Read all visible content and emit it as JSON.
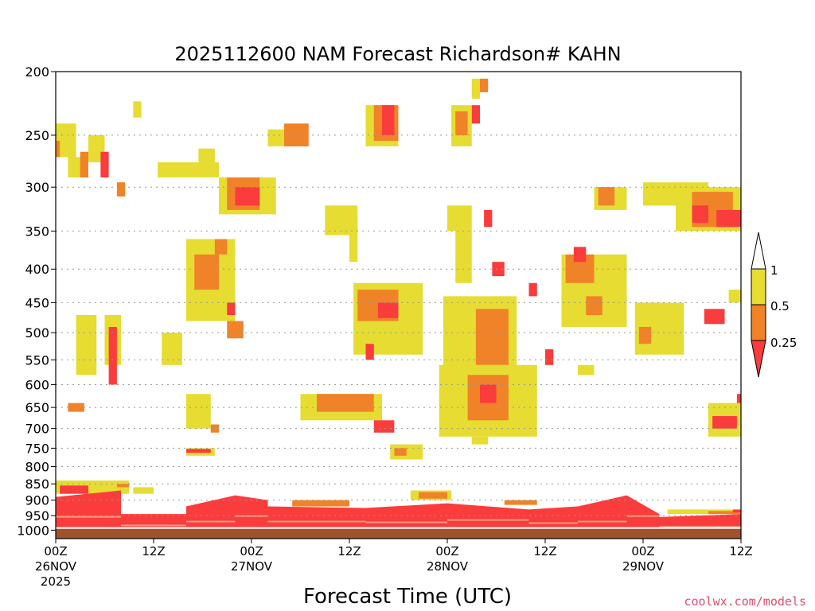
{
  "chart_data": {
    "type": "heatmap",
    "title": "2025112600 NAM Forecast Richardson# KAHN",
    "xlabel": "Forecast Time (UTC)",
    "ylabel": "",
    "credit": "coolwx.com/models",
    "x_range_hours": [
      0,
      84
    ],
    "y_range_hpa": [
      1000,
      200
    ],
    "y_ticks": [
      "200",
      "250",
      "300",
      "350",
      "400",
      "450",
      "500",
      "550",
      "600",
      "650",
      "700",
      "750",
      "800",
      "850",
      "900",
      "950",
      "1000"
    ],
    "x_ticks": [
      {
        "hour": 0,
        "line1": "00Z",
        "line2": "26NOV",
        "line3": "2025"
      },
      {
        "hour": 12,
        "line1": "12Z",
        "line2": "",
        "line3": ""
      },
      {
        "hour": 24,
        "line1": "00Z",
        "line2": "27NOV",
        "line3": ""
      },
      {
        "hour": 36,
        "line1": "12Z",
        "line2": "",
        "line3": ""
      },
      {
        "hour": 48,
        "line1": "00Z",
        "line2": "28NOV",
        "line3": ""
      },
      {
        "hour": 60,
        "line1": "12Z",
        "line2": "",
        "line3": ""
      },
      {
        "hour": 72,
        "line1": "00Z",
        "line2": "29NOV",
        "line3": ""
      },
      {
        "hour": 84,
        "line1": "12Z",
        "line2": "",
        "line3": ""
      }
    ],
    "legend": {
      "labels": [
        "1",
        "0.5",
        "0.25"
      ],
      "bins": [
        {
          "range": "0.5 to 1",
          "color": "#e6dc32"
        },
        {
          "range": "0.25 to 0.5",
          "color": "#f08228"
        },
        {
          "range": "< 0.25",
          "color": "#fa3c3c"
        }
      ],
      "above_color": "#ffffff"
    },
    "colors": {
      "yellow": "#e6dc32",
      "orange": "#f08228",
      "red": "#fa3c3c",
      "ground": "#a0522d"
    },
    "patches": [
      {
        "h": [
          0,
          2.5
        ],
        "p": [
          240,
          270
        ],
        "c": "Y"
      },
      {
        "h": [
          0,
          0.5
        ],
        "p": [
          255,
          270
        ],
        "c": "O"
      },
      {
        "h": [
          1.5,
          4
        ],
        "p": [
          270,
          290
        ],
        "c": "Y"
      },
      {
        "h": [
          3,
          4
        ],
        "p": [
          265,
          290
        ],
        "c": "O"
      },
      {
        "h": [
          4,
          6
        ],
        "p": [
          250,
          275
        ],
        "c": "Y"
      },
      {
        "h": [
          5.5,
          6.5
        ],
        "p": [
          265,
          290
        ],
        "c": "R"
      },
      {
        "h": [
          7.5,
          8.5
        ],
        "p": [
          295,
          310
        ],
        "c": "O"
      },
      {
        "h": [
          9.5,
          10.5
        ],
        "p": [
          222,
          235
        ],
        "c": "Y"
      },
      {
        "h": [
          12.5,
          20
        ],
        "p": [
          275,
          290
        ],
        "c": "Y"
      },
      {
        "h": [
          17.5,
          19.5
        ],
        "p": [
          262,
          275
        ],
        "c": "Y"
      },
      {
        "h": [
          20,
          27
        ],
        "p": [
          290,
          330
        ],
        "c": "Y"
      },
      {
        "h": [
          21,
          25
        ],
        "p": [
          290,
          325
        ],
        "c": "O"
      },
      {
        "h": [
          22,
          25
        ],
        "p": [
          300,
          320
        ],
        "c": "R"
      },
      {
        "h": [
          26,
          30
        ],
        "p": [
          245,
          260
        ],
        "c": "Y"
      },
      {
        "h": [
          28,
          31
        ],
        "p": [
          240,
          260
        ],
        "c": "O"
      },
      {
        "h": [
          38,
          42
        ],
        "p": [
          225,
          260
        ],
        "c": "Y"
      },
      {
        "h": [
          39,
          42
        ],
        "p": [
          225,
          255
        ],
        "c": "O"
      },
      {
        "h": [
          40,
          41.5
        ],
        "p": [
          225,
          250
        ],
        "c": "R"
      },
      {
        "h": [
          48.5,
          51
        ],
        "p": [
          225,
          260
        ],
        "c": "Y"
      },
      {
        "h": [
          49,
          50.5
        ],
        "p": [
          230,
          250
        ],
        "c": "O"
      },
      {
        "h": [
          51,
          52
        ],
        "p": [
          205,
          220
        ],
        "c": "Y"
      },
      {
        "h": [
          51,
          52
        ],
        "p": [
          225,
          240
        ],
        "c": "R"
      },
      {
        "h": [
          52,
          53
        ],
        "p": [
          205,
          215
        ],
        "c": "O"
      },
      {
        "h": [
          66,
          70
        ],
        "p": [
          300,
          325
        ],
        "c": "Y"
      },
      {
        "h": [
          66.5,
          68.5
        ],
        "p": [
          300,
          320
        ],
        "c": "O"
      },
      {
        "h": [
          72,
          80
        ],
        "p": [
          295,
          320
        ],
        "c": "Y"
      },
      {
        "h": [
          76,
          84
        ],
        "p": [
          300,
          350
        ],
        "c": "Y"
      },
      {
        "h": [
          78,
          83
        ],
        "p": [
          305,
          345
        ],
        "c": "O"
      },
      {
        "h": [
          78,
          80
        ],
        "p": [
          320,
          340
        ],
        "c": "R"
      },
      {
        "h": [
          81,
          84
        ],
        "p": [
          325,
          345
        ],
        "c": "R"
      },
      {
        "h": [
          33,
          37
        ],
        "p": [
          320,
          355
        ],
        "c": "Y"
      },
      {
        "h": [
          36,
          37
        ],
        "p": [
          330,
          390
        ],
        "c": "Y"
      },
      {
        "h": [
          48,
          51
        ],
        "p": [
          320,
          350
        ],
        "c": "Y"
      },
      {
        "h": [
          49,
          51
        ],
        "p": [
          350,
          420
        ],
        "c": "Y"
      },
      {
        "h": [
          52.5,
          53.5
        ],
        "p": [
          325,
          345
        ],
        "c": "R"
      },
      {
        "h": [
          16,
          22
        ],
        "p": [
          360,
          480
        ],
        "c": "Y"
      },
      {
        "h": [
          17,
          20
        ],
        "p": [
          380,
          430
        ],
        "c": "O"
      },
      {
        "h": [
          19.5,
          21
        ],
        "p": [
          360,
          380
        ],
        "c": "O"
      },
      {
        "h": [
          21,
          22
        ],
        "p": [
          450,
          470
        ],
        "c": "R"
      },
      {
        "h": [
          21,
          23
        ],
        "p": [
          480,
          510
        ],
        "c": "O"
      },
      {
        "h": [
          36.5,
          45
        ],
        "p": [
          420,
          540
        ],
        "c": "Y"
      },
      {
        "h": [
          37,
          42
        ],
        "p": [
          430,
          480
        ],
        "c": "O"
      },
      {
        "h": [
          39.5,
          42
        ],
        "p": [
          450,
          475
        ],
        "c": "R"
      },
      {
        "h": [
          38,
          39
        ],
        "p": [
          520,
          550
        ],
        "c": "R"
      },
      {
        "h": [
          47.5,
          56.5
        ],
        "p": [
          440,
          600
        ],
        "c": "Y"
      },
      {
        "h": [
          51.5,
          55.5
        ],
        "p": [
          460,
          560
        ],
        "c": "O"
      },
      {
        "h": [
          53.5,
          55
        ],
        "p": [
          390,
          410
        ],
        "c": "R"
      },
      {
        "h": [
          58,
          59
        ],
        "p": [
          420,
          440
        ],
        "c": "R"
      },
      {
        "h": [
          62,
          70
        ],
        "p": [
          380,
          490
        ],
        "c": "Y"
      },
      {
        "h": [
          62.5,
          66
        ],
        "p": [
          380,
          420
        ],
        "c": "O"
      },
      {
        "h": [
          63.5,
          65
        ],
        "p": [
          370,
          390
        ],
        "c": "R"
      },
      {
        "h": [
          65,
          67
        ],
        "p": [
          440,
          470
        ],
        "c": "O"
      },
      {
        "h": [
          71,
          77
        ],
        "p": [
          450,
          540
        ],
        "c": "Y"
      },
      {
        "h": [
          71.5,
          73
        ],
        "p": [
          490,
          520
        ],
        "c": "O"
      },
      {
        "h": [
          79.5,
          82
        ],
        "p": [
          460,
          485
        ],
        "c": "R"
      },
      {
        "h": [
          82.5,
          84
        ],
        "p": [
          430,
          450
        ],
        "c": "Y"
      },
      {
        "h": [
          60,
          61
        ],
        "p": [
          530,
          560
        ],
        "c": "R"
      },
      {
        "h": [
          64,
          66
        ],
        "p": [
          560,
          580
        ],
        "c": "Y"
      },
      {
        "h": [
          2.5,
          5
        ],
        "p": [
          470,
          580
        ],
        "c": "Y"
      },
      {
        "h": [
          6,
          8
        ],
        "p": [
          470,
          560
        ],
        "c": "Y"
      },
      {
        "h": [
          6.5,
          7.5
        ],
        "p": [
          490,
          600
        ],
        "c": "R"
      },
      {
        "h": [
          1.5,
          3.5
        ],
        "p": [
          640,
          660
        ],
        "c": "O"
      },
      {
        "h": [
          13,
          15.5
        ],
        "p": [
          500,
          560
        ],
        "c": "Y"
      },
      {
        "h": [
          16,
          19
        ],
        "p": [
          620,
          700
        ],
        "c": "Y"
      },
      {
        "h": [
          19,
          20
        ],
        "p": [
          690,
          710
        ],
        "c": "O"
      },
      {
        "h": [
          16,
          19.5
        ],
        "p": [
          750,
          770
        ],
        "c": "Y"
      },
      {
        "h": [
          16,
          19
        ],
        "p": [
          752,
          762
        ],
        "c": "R"
      },
      {
        "h": [
          30,
          40
        ],
        "p": [
          620,
          680
        ],
        "c": "Y"
      },
      {
        "h": [
          32,
          39
        ],
        "p": [
          620,
          660
        ],
        "c": "O"
      },
      {
        "h": [
          39,
          41.5
        ],
        "p": [
          680,
          710
        ],
        "c": "R"
      },
      {
        "h": [
          47,
          59
        ],
        "p": [
          560,
          720
        ],
        "c": "Y"
      },
      {
        "h": [
          50.5,
          55.5
        ],
        "p": [
          580,
          680
        ],
        "c": "O"
      },
      {
        "h": [
          52,
          54
        ],
        "p": [
          600,
          640
        ],
        "c": "R"
      },
      {
        "h": [
          51,
          53
        ],
        "p": [
          720,
          740
        ],
        "c": "Y"
      },
      {
        "h": [
          41,
          45
        ],
        "p": [
          740,
          780
        ],
        "c": "Y"
      },
      {
        "h": [
          41.5,
          43
        ],
        "p": [
          750,
          770
        ],
        "c": "O"
      },
      {
        "h": [
          80,
          84
        ],
        "p": [
          640,
          720
        ],
        "c": "Y"
      },
      {
        "h": [
          80.5,
          83.5
        ],
        "p": [
          670,
          700
        ],
        "c": "R"
      },
      {
        "h": [
          83.5,
          84
        ],
        "p": [
          620,
          640
        ],
        "c": "R"
      },
      {
        "h": [
          0,
          9
        ],
        "p": [
          840,
          880
        ],
        "c": "Y"
      },
      {
        "h": [
          0.5,
          4
        ],
        "p": [
          855,
          880
        ],
        "c": "R"
      },
      {
        "h": [
          7.5,
          9
        ],
        "p": [
          850,
          860
        ],
        "c": "O"
      },
      {
        "h": [
          9.5,
          12
        ],
        "p": [
          860,
          880
        ],
        "c": "Y"
      },
      {
        "h": [
          29,
          36
        ],
        "p": [
          900,
          920
        ],
        "c": "O"
      },
      {
        "h": [
          43.5,
          48.5
        ],
        "p": [
          870,
          900
        ],
        "c": "Y"
      },
      {
        "h": [
          44.5,
          48
        ],
        "p": [
          875,
          895
        ],
        "c": "O"
      },
      {
        "h": [
          55,
          59
        ],
        "p": [
          900,
          915
        ],
        "c": "O"
      },
      {
        "h": [
          75,
          84
        ],
        "p": [
          930,
          945
        ],
        "c": "Y"
      },
      {
        "h": [
          80,
          84
        ],
        "p": [
          935,
          945
        ],
        "c": "O"
      },
      {
        "h": [
          83,
          84
        ],
        "p": [
          930,
          940
        ],
        "c": "R"
      }
    ],
    "bands": [
      {
        "h": [
          0,
          8
        ],
        "p_top": [
          890,
          870
        ],
        "c": "R"
      },
      {
        "h": [
          8,
          16
        ],
        "p_top": [
          945,
          945
        ],
        "c": "R"
      },
      {
        "h": [
          16,
          22
        ],
        "p_top": [
          920,
          885
        ],
        "c": "R"
      },
      {
        "h": [
          22,
          26
        ],
        "p_top": [
          885,
          900
        ],
        "c": "R"
      },
      {
        "h": [
          26,
          38
        ],
        "p_top": [
          920,
          925
        ],
        "c": "R"
      },
      {
        "h": [
          38,
          48
        ],
        "p_top": [
          925,
          910
        ],
        "c": "R"
      },
      {
        "h": [
          48,
          58
        ],
        "p_top": [
          910,
          930
        ],
        "c": "R"
      },
      {
        "h": [
          58,
          64
        ],
        "p_top": [
          930,
          920
        ],
        "c": "R"
      },
      {
        "h": [
          64,
          70
        ],
        "p_top": [
          920,
          885
        ],
        "c": "R"
      },
      {
        "h": [
          70,
          74
        ],
        "p_top": [
          885,
          945
        ],
        "c": "R"
      },
      {
        "h": [
          74,
          84
        ],
        "p_top": [
          955,
          945
        ],
        "c": "R"
      }
    ],
    "ground_p": 995
  }
}
